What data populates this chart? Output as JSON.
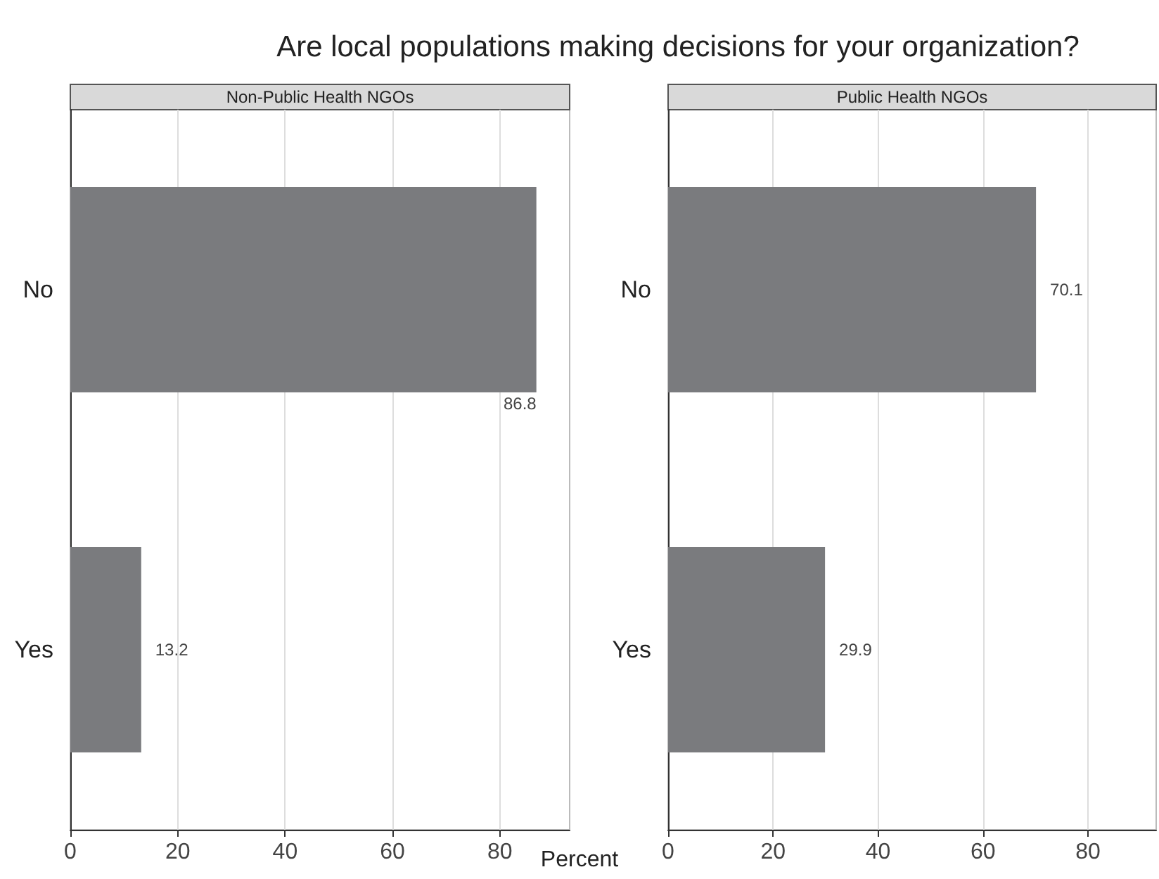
{
  "chart_data": [
    {
      "type": "bar",
      "orientation": "horizontal",
      "title": "Are local populations making decisions for your organization?",
      "subtitle": "Non-Public Health NGOs",
      "xlabel": "Percent",
      "categories": [
        "No",
        "Yes"
      ],
      "values": [
        86.8,
        13.2
      ],
      "color": "#7a7b7e",
      "xlim": [
        0,
        93
      ],
      "xticks": [
        0,
        20,
        40,
        60,
        80
      ],
      "grid": "x",
      "data_labels": true
    },
    {
      "type": "bar",
      "orientation": "horizontal",
      "subtitle": "Public Health NGOs",
      "categories": [
        "No",
        "Yes"
      ],
      "values": [
        70.1,
        29.9
      ],
      "color": "#7a7b7e",
      "xlim": [
        0,
        93
      ],
      "xticks": [
        0,
        20,
        40,
        60,
        80
      ],
      "grid": "x",
      "data_labels": true
    }
  ]
}
